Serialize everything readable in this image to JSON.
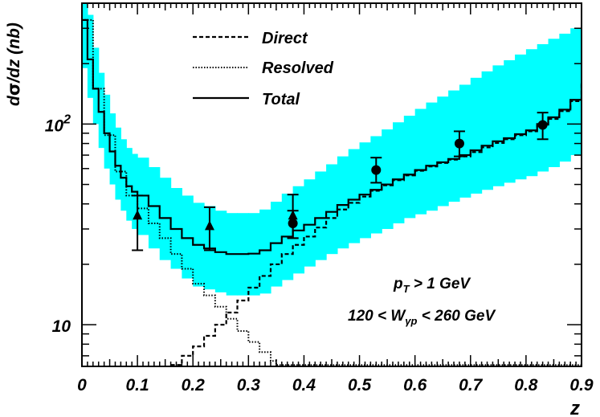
{
  "chart_data": {
    "type": "line",
    "ylabel_parts": [
      "d",
      "σ",
      "/dz (nb)"
    ],
    "xlabel": "z",
    "xlim": [
      0,
      0.9
    ],
    "ylim": [
      6.2,
      400
    ],
    "yscale": "log",
    "x_ticks": [
      "0",
      "0.1",
      "0.2",
      "0.3",
      "0.4",
      "0.5",
      "0.6",
      "0.7",
      "0.8",
      "0.9"
    ],
    "x_tick_values": [
      0,
      0.1,
      0.2,
      0.3,
      0.4,
      0.5,
      0.6,
      0.7,
      0.8,
      0.9
    ],
    "y_tick_labels": [
      {
        "value": 100,
        "base": "10",
        "exp": "2"
      },
      {
        "value": 10,
        "base": "10",
        "exp": ""
      }
    ],
    "legend": [
      {
        "label": "Direct",
        "style": "dashed"
      },
      {
        "label": "Resolved",
        "style": "dotted"
      },
      {
        "label": "Total",
        "style": "solid"
      }
    ],
    "annotations": {
      "pt_main": "p",
      "pt_sub": "T",
      "pt_rest": " > 1 GeV",
      "w_pre": "120 < W",
      "w_sub": "γp",
      "w_post": " < 260 GeV"
    },
    "band_color": "#00ffff",
    "series": [
      {
        "name": "Total",
        "style": "solid",
        "x": [
          0.0,
          0.01,
          0.02,
          0.03,
          0.04,
          0.05,
          0.06,
          0.07,
          0.08,
          0.09,
          0.1,
          0.12,
          0.14,
          0.16,
          0.18,
          0.2,
          0.22,
          0.24,
          0.26,
          0.28,
          0.3,
          0.32,
          0.34,
          0.36,
          0.38,
          0.4,
          0.42,
          0.44,
          0.46,
          0.48,
          0.5,
          0.52,
          0.54,
          0.56,
          0.58,
          0.6,
          0.62,
          0.64,
          0.66,
          0.68,
          0.7,
          0.72,
          0.74,
          0.76,
          0.78,
          0.8,
          0.82,
          0.84,
          0.86,
          0.88,
          0.9
        ],
        "y": [
          330,
          210,
          150,
          115,
          90,
          73,
          62,
          54,
          49,
          46,
          44,
          39,
          34,
          30,
          27,
          25,
          24,
          23,
          22.5,
          22.5,
          22.6,
          23.5,
          25.5,
          27.5,
          29.5,
          31.5,
          34,
          36.5,
          39.5,
          42,
          44.5,
          47,
          50,
          53,
          56,
          59,
          62,
          64.5,
          67,
          70,
          74,
          78,
          82,
          85,
          89,
          93,
          100,
          108,
          118,
          132,
          160
        ]
      },
      {
        "name": "Direct",
        "style": "dashed",
        "x": [
          0.16,
          0.18,
          0.2,
          0.22,
          0.24,
          0.26,
          0.28,
          0.3,
          0.32,
          0.34,
          0.36,
          0.38,
          0.4,
          0.42,
          0.44,
          0.46,
          0.48,
          0.5,
          0.52,
          0.54,
          0.56,
          0.58,
          0.6,
          0.62,
          0.64,
          0.66,
          0.68,
          0.7,
          0.72,
          0.74,
          0.76,
          0.78,
          0.8,
          0.82,
          0.84,
          0.86,
          0.88,
          0.9
        ],
        "y": [
          6.3,
          7.0,
          7.8,
          8.8,
          10.0,
          11.5,
          13.2,
          15.3,
          17.5,
          20.0,
          22.5,
          25.0,
          27.5,
          30.5,
          34.0,
          37.5,
          40.5,
          43.5,
          46.5,
          49.5,
          52.5,
          55.5,
          58.5,
          61.5,
          64.0,
          66.5,
          69.0,
          72.5,
          76.5,
          80.5,
          84.0,
          88.0,
          92.0,
          98.0,
          106.0,
          116.0,
          130.0,
          158.0
        ]
      },
      {
        "name": "Resolved",
        "style": "dotted",
        "x": [
          0.0,
          0.02,
          0.04,
          0.06,
          0.08,
          0.1,
          0.12,
          0.14,
          0.16,
          0.18,
          0.2,
          0.22,
          0.24,
          0.26,
          0.28,
          0.3,
          0.32,
          0.34,
          0.35
        ],
        "y": [
          330,
          150,
          88,
          58,
          44,
          38,
          32,
          27,
          22.5,
          19,
          16,
          14,
          12.3,
          10.7,
          9.3,
          8.2,
          7.3,
          6.6,
          6.3
        ]
      }
    ],
    "band": {
      "name": "Total uncertainty",
      "x": [
        0.0,
        0.01,
        0.02,
        0.03,
        0.04,
        0.05,
        0.06,
        0.07,
        0.08,
        0.09,
        0.1,
        0.12,
        0.14,
        0.16,
        0.18,
        0.2,
        0.22,
        0.24,
        0.26,
        0.28,
        0.3,
        0.32,
        0.34,
        0.36,
        0.38,
        0.4,
        0.42,
        0.44,
        0.46,
        0.48,
        0.5,
        0.52,
        0.54,
        0.56,
        0.58,
        0.6,
        0.62,
        0.64,
        0.66,
        0.68,
        0.7,
        0.72,
        0.74,
        0.76,
        0.78,
        0.8,
        0.82,
        0.84,
        0.86,
        0.88,
        0.9
      ],
      "low": [
        190,
        135,
        100,
        76,
        60,
        50,
        42,
        37,
        33,
        30,
        28,
        24,
        21,
        19,
        17,
        15.5,
        15,
        14.5,
        14,
        14,
        14,
        14.3,
        15.5,
        16.7,
        18,
        19.5,
        21,
        22.5,
        24,
        25.5,
        27,
        28.5,
        30,
        32,
        34,
        35.5,
        37,
        39,
        41,
        43,
        45,
        47,
        49,
        51,
        53,
        55,
        58,
        61,
        65,
        70,
        76
      ],
      "high": [
        560,
        350,
        240,
        180,
        140,
        113,
        96,
        84,
        76,
        71,
        68,
        61,
        54,
        48,
        44,
        40.5,
        39,
        37,
        36,
        36,
        36,
        37.5,
        41,
        45,
        49,
        53,
        58,
        63,
        69,
        75,
        81,
        87,
        94,
        102,
        110,
        119,
        128,
        137,
        147,
        157,
        170,
        183,
        196,
        208,
        222,
        236,
        250,
        266,
        282,
        300,
        320
      ]
    },
    "data_points": [
      {
        "x": 0.1,
        "y": 35,
        "err_low": 23.5,
        "err_high": 44,
        "marker": "triangle"
      },
      {
        "x": 0.23,
        "y": 31,
        "err_low": 23.5,
        "err_high": 38.5,
        "marker": "triangle"
      },
      {
        "x": 0.38,
        "y": 35,
        "err_low": 27,
        "err_high": 44.5,
        "marker": "triangle"
      },
      {
        "x": 0.38,
        "y": 32,
        "err_low": 27,
        "err_high": 37,
        "marker": "circle"
      },
      {
        "x": 0.53,
        "y": 59,
        "err_low": 51,
        "err_high": 68,
        "marker": "circle"
      },
      {
        "x": 0.68,
        "y": 80,
        "err_low": 69,
        "err_high": 92,
        "marker": "circle"
      },
      {
        "x": 0.83,
        "y": 99,
        "err_low": 84,
        "err_high": 114,
        "marker": "circle"
      }
    ]
  }
}
